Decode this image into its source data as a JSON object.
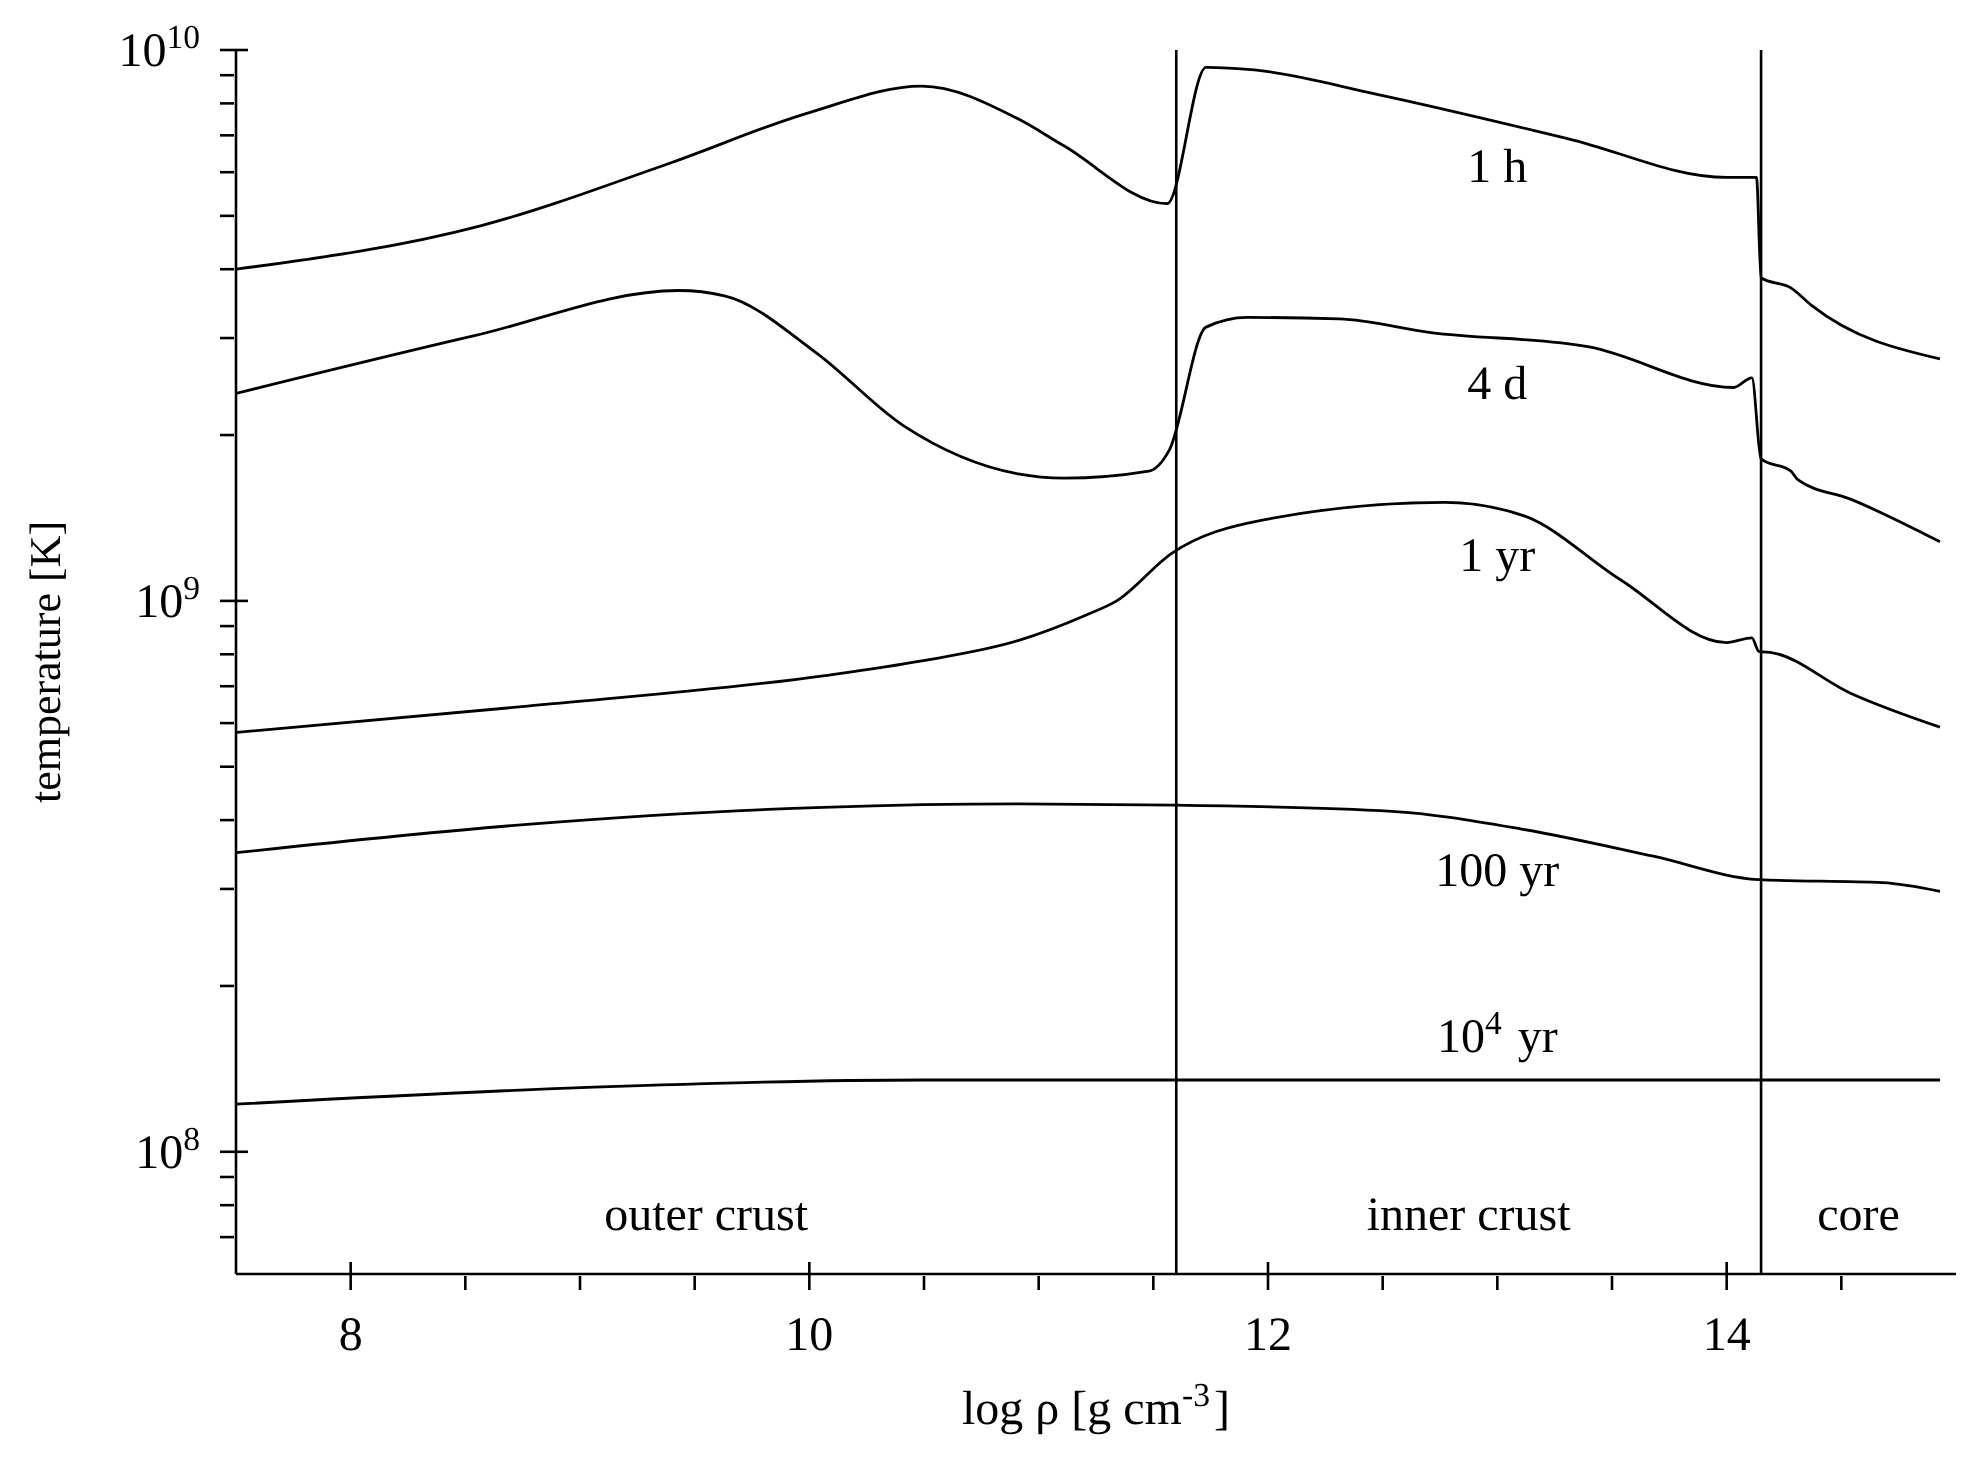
{
  "chart_data": {
    "type": "line",
    "xlabel": "log ρ [g cm$^{-3}$]",
    "ylabel": "temperature [K]",
    "log": "y",
    "xlim": [
      7.5,
      15
    ],
    "ylim": [
      60000000,
      10000000000
    ],
    "xticks": [
      8,
      {
        "value": 8.5,
        "label": null
      },
      {
        "value": 9,
        "label": null
      },
      {
        "value": 9.5,
        "label": null
      },
      10,
      {
        "value": 10.5,
        "label": null
      },
      {
        "value": 11,
        "label": null
      },
      {
        "value": 11.5,
        "label": null
      },
      12,
      {
        "value": 12.5,
        "label": null
      },
      {
        "value": 13,
        "label": null
      },
      {
        "value": 13.5,
        "label": null
      },
      14,
      {
        "value": 14.5,
        "label": null
      }
    ],
    "yticks": [
      {
        "value": 70000000,
        "label": null
      },
      {
        "value": 80000000,
        "label": null
      },
      {
        "value": 90000000,
        "label": null
      },
      {
        "value": 100000000,
        "label": "10$^{8}$"
      },
      {
        "value": 200000000,
        "label": null
      },
      {
        "value": 300000000,
        "label": null
      },
      {
        "value": 400000000,
        "label": null
      },
      {
        "value": 500000000,
        "label": null
      },
      {
        "value": 600000000,
        "label": null
      },
      {
        "value": 700000000,
        "label": null
      },
      {
        "value": 800000000,
        "label": null
      },
      {
        "value": 900000000,
        "label": null
      },
      {
        "value": 1000000000,
        "label": "10$^{9}$"
      },
      {
        "value": 2000000000,
        "label": null
      },
      {
        "value": 3000000000,
        "label": null
      },
      {
        "value": 4000000000,
        "label": null
      },
      {
        "value": 5000000000,
        "label": null
      },
      {
        "value": 6000000000,
        "label": null
      },
      {
        "value": 7000000000,
        "label": null
      },
      {
        "value": 8000000000,
        "label": null
      },
      {
        "value": 9000000000,
        "label": null
      },
      {
        "value": 10000000000,
        "label": "10$^{10}$"
      }
    ],
    "series": [
      {
        "name": "1 h",
        "color": "#000000",
        "x": [
          7.5,
          8.57,
          9.4,
          10.0,
          10.49,
          10.91,
          11.11,
          11.56,
          11.73,
          11.94,
          12.48,
          13.31,
          14.0,
          14.13,
          14.15,
          14.28,
          14.37,
          14.93
        ],
        "values": [
          4000000000,
          4800000000,
          6250000000,
          7700000000,
          8600000000,
          7500000000,
          6700000000,
          5260000000,
          9300000000,
          9200000000,
          8300000000,
          6900000000,
          5870000000,
          5870000000,
          3860000000,
          3700000000,
          3440000000,
          2750000000
        ]
      },
      {
        "name": "4 d",
        "color": "#000000",
        "x": [
          7.5,
          8.54,
          9.43,
          9.63,
          10.03,
          10.41,
          10.91,
          11.11,
          11.48,
          11.57,
          11.73,
          11.91,
          12.31,
          12.71,
          13.4,
          14.03,
          14.11,
          14.15,
          14.28,
          14.31,
          14.54,
          14.93
        ],
        "values": [
          2380000000,
          3030000000,
          3660000000,
          3580000000,
          2820000000,
          2080000000,
          1700000000,
          1670000000,
          1720000000,
          1880000000,
          3140000000,
          3270000000,
          3250000000,
          3070000000,
          2890000000,
          2440000000,
          2540000000,
          1810000000,
          1720000000,
          1660000000,
          1530000000,
          1280000000
        ]
      },
      {
        "name": "1 yr",
        "color": "#000000",
        "x": [
          7.5,
          8.77,
          10.06,
          10.49,
          10.91,
          11.2,
          11.34,
          11.58,
          11.97,
          12.77,
          13.11,
          13.54,
          14.0,
          14.11,
          14.14,
          14.2,
          14.54,
          14.93
        ],
        "values": [
          577000000,
          644000000,
          731000000,
          778000000,
          847000000,
          940000000,
          1000000000,
          1220000000,
          1400000000,
          1510000000,
          1430000000,
          1090000000,
          840000000,
          857000000,
          810000000,
          805000000,
          680000000,
          590000000
        ]
      },
      {
        "name": "100 yr",
        "color": "#000000",
        "x": [
          7.5,
          8.77,
          10.06,
          10.91,
          11.59,
          12.54,
          13.11,
          13.68,
          14.14,
          14.68,
          14.93
        ],
        "values": [
          349000000,
          393000000,
          422000000,
          428000000,
          426000000,
          415000000,
          385000000,
          344000000,
          312000000,
          308000000,
          297000000
        ]
      },
      {
        "name": "10$^{4}$ yr",
        "color": "#000000",
        "x": [
          7.5,
          9.06,
          10.49,
          11.6,
          14.93
        ],
        "values": [
          122000000,
          131000000,
          135000000,
          135000000,
          135000000
        ]
      }
    ],
    "ref_lines": [
      {
        "axis": "x",
        "value": 11.6,
        "color": "#000000"
      },
      {
        "axis": "x",
        "value": 14.15,
        "color": "#000000"
      }
    ],
    "annotations": [
      "outer crust",
      "inner crust",
      "core"
    ]
  }
}
